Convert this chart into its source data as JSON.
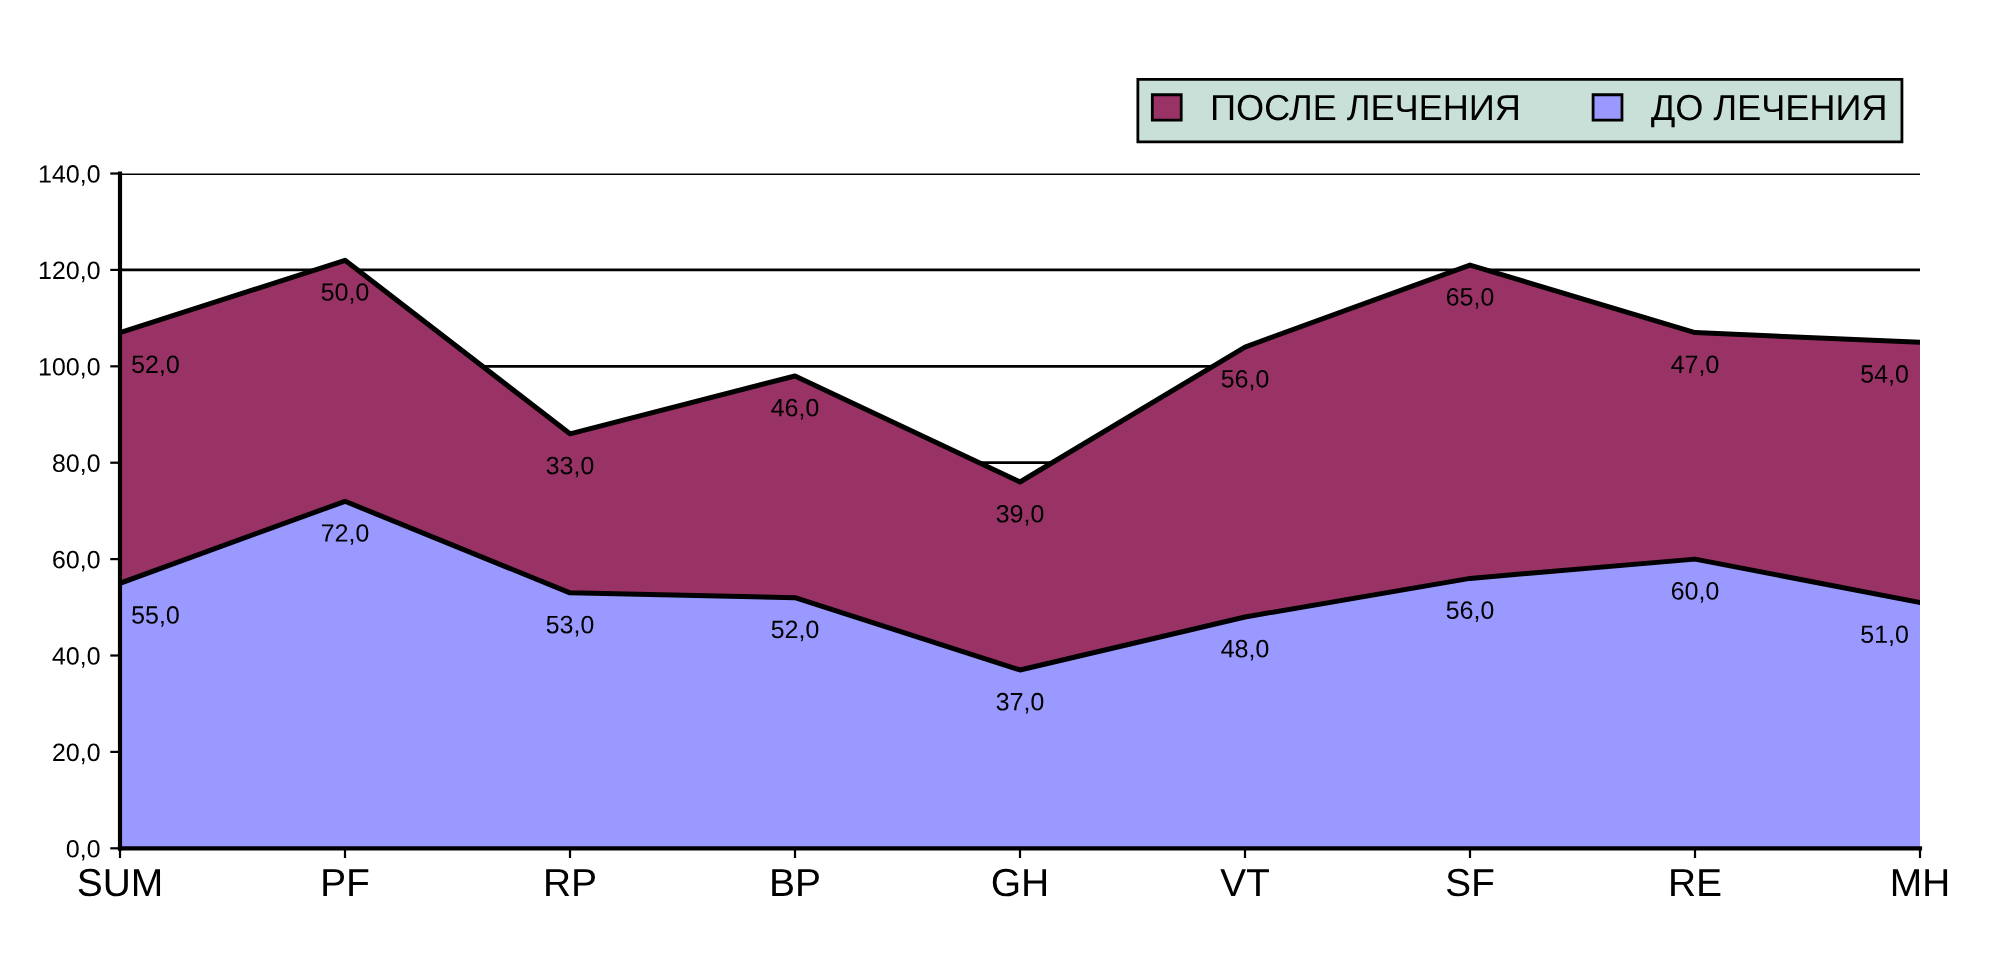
{
  "chart_data": {
    "type": "area",
    "stacked": true,
    "categories": [
      "SUM",
      "PF",
      "RP",
      "BP",
      "GH",
      "VT",
      "SF",
      "RE",
      "MH"
    ],
    "series": [
      {
        "name": "ДО ЛЕЧЕНИЯ",
        "color": "#9999ff",
        "values": [
          55,
          72,
          53,
          52,
          37,
          48,
          56,
          60,
          51
        ],
        "value_labels": [
          "55,0",
          "72,0",
          "53,0",
          "52,0",
          "37,0",
          "48,0",
          "56,0",
          "60,0",
          "51,0"
        ]
      },
      {
        "name": "ПОСЛЕ ЛЕЧЕНИЯ",
        "color": "#993366",
        "values": [
          52,
          50,
          33,
          46,
          39,
          56,
          65,
          47,
          54
        ],
        "value_labels": [
          "52,0",
          "50,0",
          "33,0",
          "46,0",
          "39,0",
          "56,0",
          "65,0",
          "47,0",
          "54,0"
        ]
      }
    ],
    "ylim": [
      0,
      140
    ],
    "yticks": [
      {
        "value": 0,
        "label": "0,0"
      },
      {
        "value": 20,
        "label": "20,0"
      },
      {
        "value": 40,
        "label": "40,0"
      },
      {
        "value": 60,
        "label": "60,0"
      },
      {
        "value": 80,
        "label": "80,0"
      },
      {
        "value": 100,
        "label": "100,0"
      },
      {
        "value": 120,
        "label": "120,0"
      },
      {
        "value": 140,
        "label": "140,0"
      }
    ],
    "grid": "y",
    "legend": "top right"
  }
}
